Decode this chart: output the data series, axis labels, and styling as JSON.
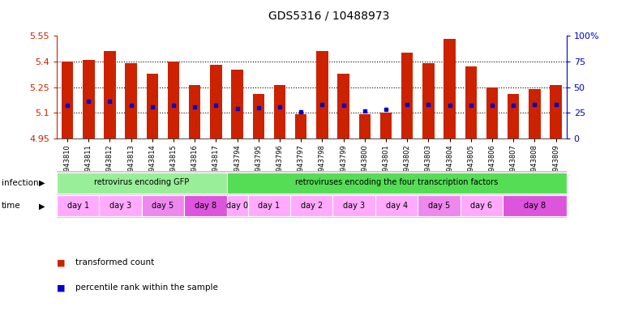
{
  "title": "GDS5316 / 10488973",
  "samples": [
    "GSM943810",
    "GSM943811",
    "GSM943812",
    "GSM943813",
    "GSM943814",
    "GSM943815",
    "GSM943816",
    "GSM943817",
    "GSM943794",
    "GSM943795",
    "GSM943796",
    "GSM943797",
    "GSM943798",
    "GSM943799",
    "GSM943800",
    "GSM943801",
    "GSM943802",
    "GSM943803",
    "GSM943804",
    "GSM943805",
    "GSM943806",
    "GSM943807",
    "GSM943808",
    "GSM943809"
  ],
  "transformed_count": [
    5.4,
    5.41,
    5.46,
    5.39,
    5.33,
    5.4,
    5.26,
    5.38,
    5.35,
    5.21,
    5.26,
    5.09,
    5.46,
    5.33,
    5.09,
    5.1,
    5.45,
    5.39,
    5.53,
    5.37,
    5.25,
    5.21,
    5.24,
    5.26
  ],
  "percentile_rank": [
    32,
    36,
    36,
    32,
    31,
    32,
    31,
    32,
    29,
    30,
    31,
    26,
    33,
    32,
    27,
    28,
    33,
    33,
    32,
    32,
    32,
    32,
    33,
    33
  ],
  "ylim_left": [
    4.95,
    5.55
  ],
  "ylim_right": [
    0,
    100
  ],
  "yticks_left": [
    4.95,
    5.1,
    5.25,
    5.4,
    5.55
  ],
  "yticks_right": [
    0,
    25,
    50,
    75,
    100
  ],
  "bar_color": "#cc2200",
  "dot_color": "#0000cc",
  "infection_groups": [
    {
      "label": "retrovirus encoding GFP",
      "start": 0,
      "end": 8,
      "color": "#99ee99"
    },
    {
      "label": "retroviruses encoding the four transcription factors",
      "start": 8,
      "end": 24,
      "color": "#55dd55"
    }
  ],
  "time_groups": [
    {
      "label": "day 1",
      "start": 0,
      "end": 2,
      "color": "#ffaaff"
    },
    {
      "label": "day 3",
      "start": 2,
      "end": 4,
      "color": "#ffaaff"
    },
    {
      "label": "day 5",
      "start": 4,
      "end": 6,
      "color": "#ee88ee"
    },
    {
      "label": "day 8",
      "start": 6,
      "end": 8,
      "color": "#dd55dd"
    },
    {
      "label": "day 0",
      "start": 8,
      "end": 9,
      "color": "#ffaaff"
    },
    {
      "label": "day 1",
      "start": 9,
      "end": 11,
      "color": "#ffaaff"
    },
    {
      "label": "day 2",
      "start": 11,
      "end": 13,
      "color": "#ffaaff"
    },
    {
      "label": "day 3",
      "start": 13,
      "end": 15,
      "color": "#ffaaff"
    },
    {
      "label": "day 4",
      "start": 15,
      "end": 17,
      "color": "#ffaaff"
    },
    {
      "label": "day 5",
      "start": 17,
      "end": 19,
      "color": "#ee88ee"
    },
    {
      "label": "day 6",
      "start": 19,
      "end": 21,
      "color": "#ffaaff"
    },
    {
      "label": "day 8",
      "start": 21,
      "end": 24,
      "color": "#dd55dd"
    }
  ]
}
